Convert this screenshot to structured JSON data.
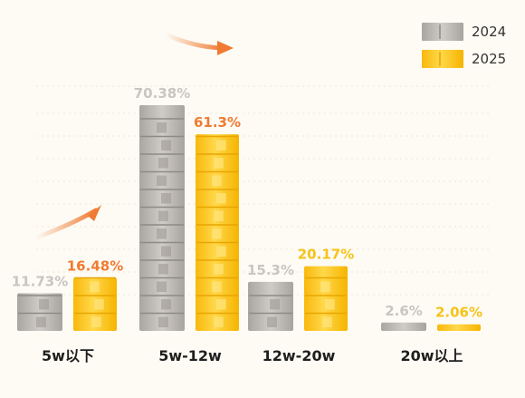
{
  "chart_data": {
    "type": "bar",
    "title": "",
    "categories": [
      "5w以下",
      "5w-12w",
      "12w-20w",
      "20w以上"
    ],
    "series": [
      {
        "name": "2024",
        "values": [
          11.73,
          70.38,
          15.3,
          2.6
        ],
        "labels": [
          "11.73%",
          "70.38%",
          "15.3%",
          "2.6%"
        ],
        "color": "#b4b0ac",
        "label_color": "#c8c5c2"
      },
      {
        "name": "2025",
        "values": [
          16.48,
          61.3,
          20.17,
          2.06
        ],
        "labels": [
          "16.48%",
          "61.3%",
          "20.17%",
          "2.06%"
        ],
        "color": "#fcc419",
        "label_color_first_two": "#f07a32",
        "label_color_last_two": "#f5c31a"
      }
    ],
    "ylim": [
      0,
      78
    ],
    "grid": true,
    "legend": "top-right",
    "xlabel": "",
    "ylabel": ""
  },
  "colors": {
    "background": "#fdfbf4",
    "arrow": "#f07a32",
    "axis_label": "#1e1e1e"
  },
  "icons": [
    "rising-arrow-icon"
  ]
}
